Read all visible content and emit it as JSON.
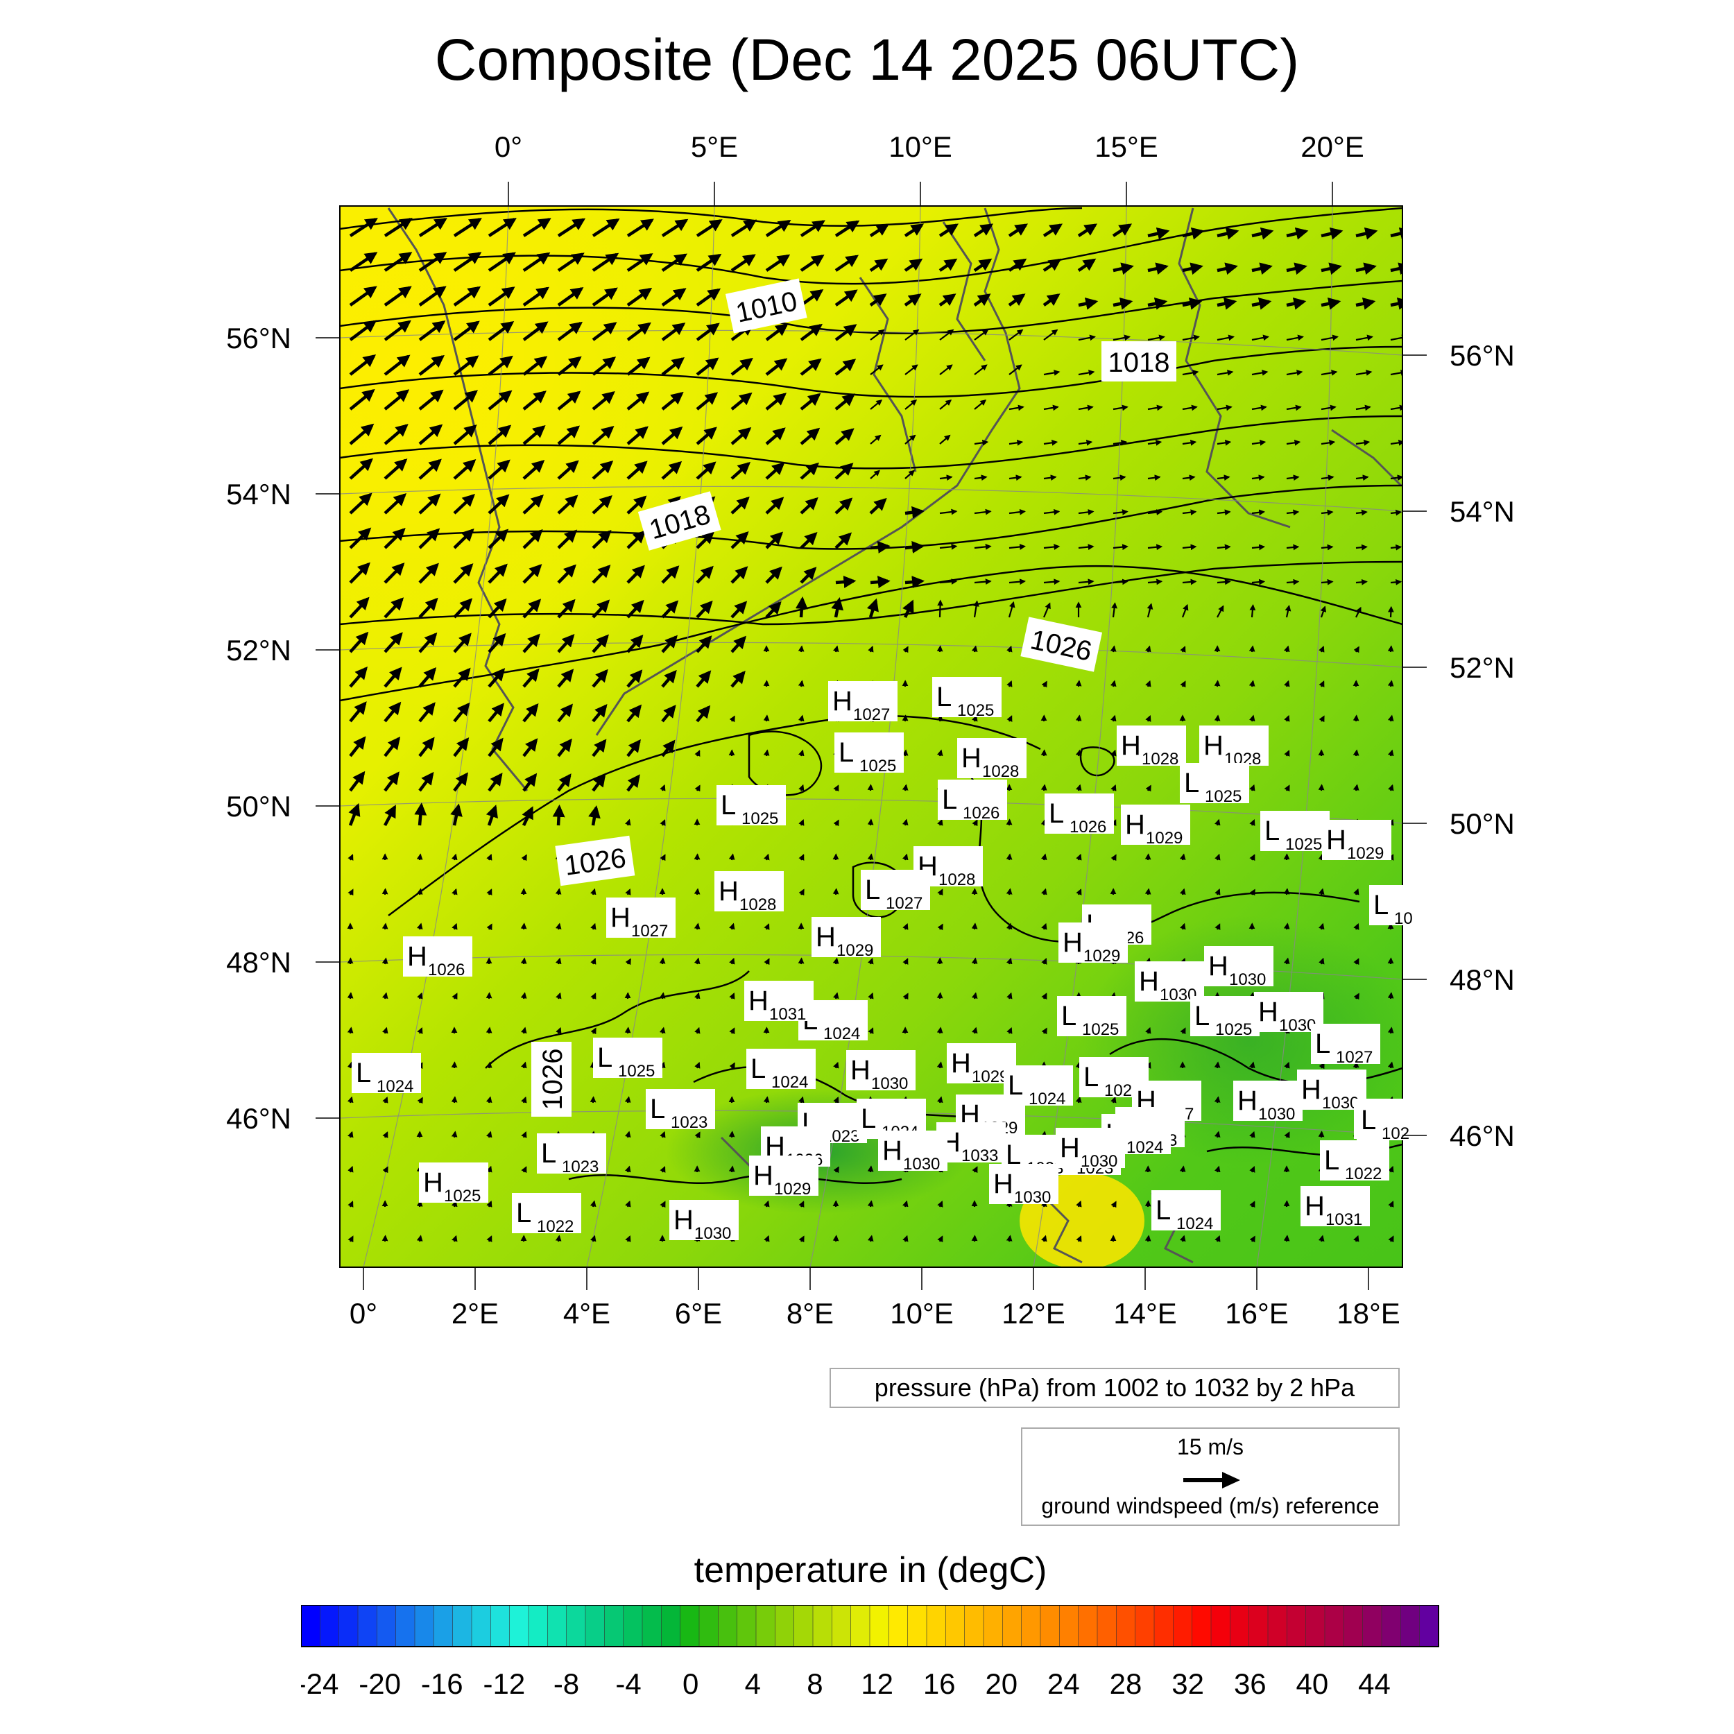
{
  "title": "Composite (Dec 14 2025 06UTC)",
  "axes": {
    "top_lon": [
      "0°",
      "5°E",
      "10°E",
      "15°E",
      "20°E"
    ],
    "bottom_lon": [
      "0°",
      "2°E",
      "4°E",
      "6°E",
      "8°E",
      "10°E",
      "12°E",
      "14°E",
      "16°E",
      "18°E"
    ],
    "left_lat": [
      "56°N",
      "54°N",
      "52°N",
      "50°N",
      "48°N",
      "46°N"
    ],
    "right_lat": [
      "56°N",
      "54°N",
      "52°N",
      "50°N",
      "48°N",
      "46°N"
    ]
  },
  "isobar_labels": [
    "1010",
    "1018",
    "1018",
    "1026",
    "1026",
    "1026"
  ],
  "pressure_centers": [
    {
      "t": "H",
      "v": "1027"
    },
    {
      "t": "L",
      "v": "1025"
    },
    {
      "t": "L",
      "v": "1025"
    },
    {
      "t": "H",
      "v": "1028"
    },
    {
      "t": "H",
      "v": "1028"
    },
    {
      "t": "H",
      "v": "1028"
    },
    {
      "t": "L",
      "v": "1025"
    },
    {
      "t": "L",
      "v": "1026"
    },
    {
      "t": "L",
      "v": "1026"
    },
    {
      "t": "H",
      "v": "1029"
    },
    {
      "t": "L",
      "v": "1025"
    },
    {
      "t": "L",
      "v": "1025"
    },
    {
      "t": "H",
      "v": "1029"
    },
    {
      "t": "H",
      "v": "1028"
    },
    {
      "t": "H",
      "v": "1028"
    },
    {
      "t": "L",
      "v": "1027"
    },
    {
      "t": "H",
      "v": "1027"
    },
    {
      "t": "H",
      "v": "1029"
    },
    {
      "t": "L",
      "v": "1026"
    },
    {
      "t": "H",
      "v": "1029"
    },
    {
      "t": "H",
      "v": "1026"
    },
    {
      "t": "H",
      "v": "1030"
    },
    {
      "t": "H",
      "v": "1030"
    },
    {
      "t": "L",
      "v": "1025"
    },
    {
      "t": "L",
      "v": "1024"
    },
    {
      "t": "H",
      "v": "1031"
    },
    {
      "t": "L",
      "v": "1025"
    },
    {
      "t": "H",
      "v": "1030"
    },
    {
      "t": "L",
      "v": "1027"
    },
    {
      "t": "L",
      "v": "1024"
    },
    {
      "t": "L",
      "v": "1025"
    },
    {
      "t": "L",
      "v": "1024"
    },
    {
      "t": "H",
      "v": "1030"
    },
    {
      "t": "H",
      "v": "1029"
    },
    {
      "t": "L",
      "v": "1024"
    },
    {
      "t": "L",
      "v": "1024"
    },
    {
      "t": "H",
      "v": "1030"
    },
    {
      "t": "H",
      "v": "1027"
    },
    {
      "t": "L",
      "v": "1023"
    },
    {
      "t": "L",
      "v": "1023"
    },
    {
      "t": "L",
      "v": "1023"
    },
    {
      "t": "H",
      "v": "1030"
    },
    {
      "t": "H",
      "v": "1029"
    },
    {
      "t": "L",
      "v": "1024"
    },
    {
      "t": "H",
      "v": "1030"
    },
    {
      "t": "L",
      "v": "1024"
    },
    {
      "t": "H",
      "v": "1033"
    },
    {
      "t": "H",
      "v": "1026"
    },
    {
      "t": "L",
      "v": "1023"
    },
    {
      "t": "L",
      "v": "1023"
    },
    {
      "t": "H",
      "v": "1030"
    },
    {
      "t": "L",
      "v": "1023"
    },
    {
      "t": "H",
      "v": "1029"
    },
    {
      "t": "H",
      "v": "1030"
    },
    {
      "t": "H",
      "v": "1025"
    },
    {
      "t": "L",
      "v": "1022"
    },
    {
      "t": "H",
      "v": "1030"
    },
    {
      "t": "L",
      "v": "1022"
    },
    {
      "t": "H",
      "v": "1030"
    },
    {
      "t": "L",
      "v": "1024"
    },
    {
      "t": "H",
      "v": "1031"
    },
    {
      "t": "L",
      "v": "10"
    },
    {
      "t": "L",
      "v": "102"
    }
  ],
  "pressure_legend": "pressure (hPa) from 1002 to 1032 by 2 hPa",
  "wind_reference": {
    "value": "15 m/s",
    "label": "ground windspeed (m/s) reference"
  },
  "colorbar": {
    "title": "temperature in (degC)",
    "tick_labels": [
      "-24",
      "-20",
      "-16",
      "-12",
      "-8",
      "-4",
      "0",
      "4",
      "8",
      "12",
      "16",
      "20",
      "24",
      "28",
      "32",
      "36",
      "40",
      "44"
    ]
  },
  "colors": {
    "warm": "#ffee00",
    "mid": "#a6e200",
    "cool": "#3cc01c",
    "coastline": "#555555",
    "isobar": "#000000"
  }
}
